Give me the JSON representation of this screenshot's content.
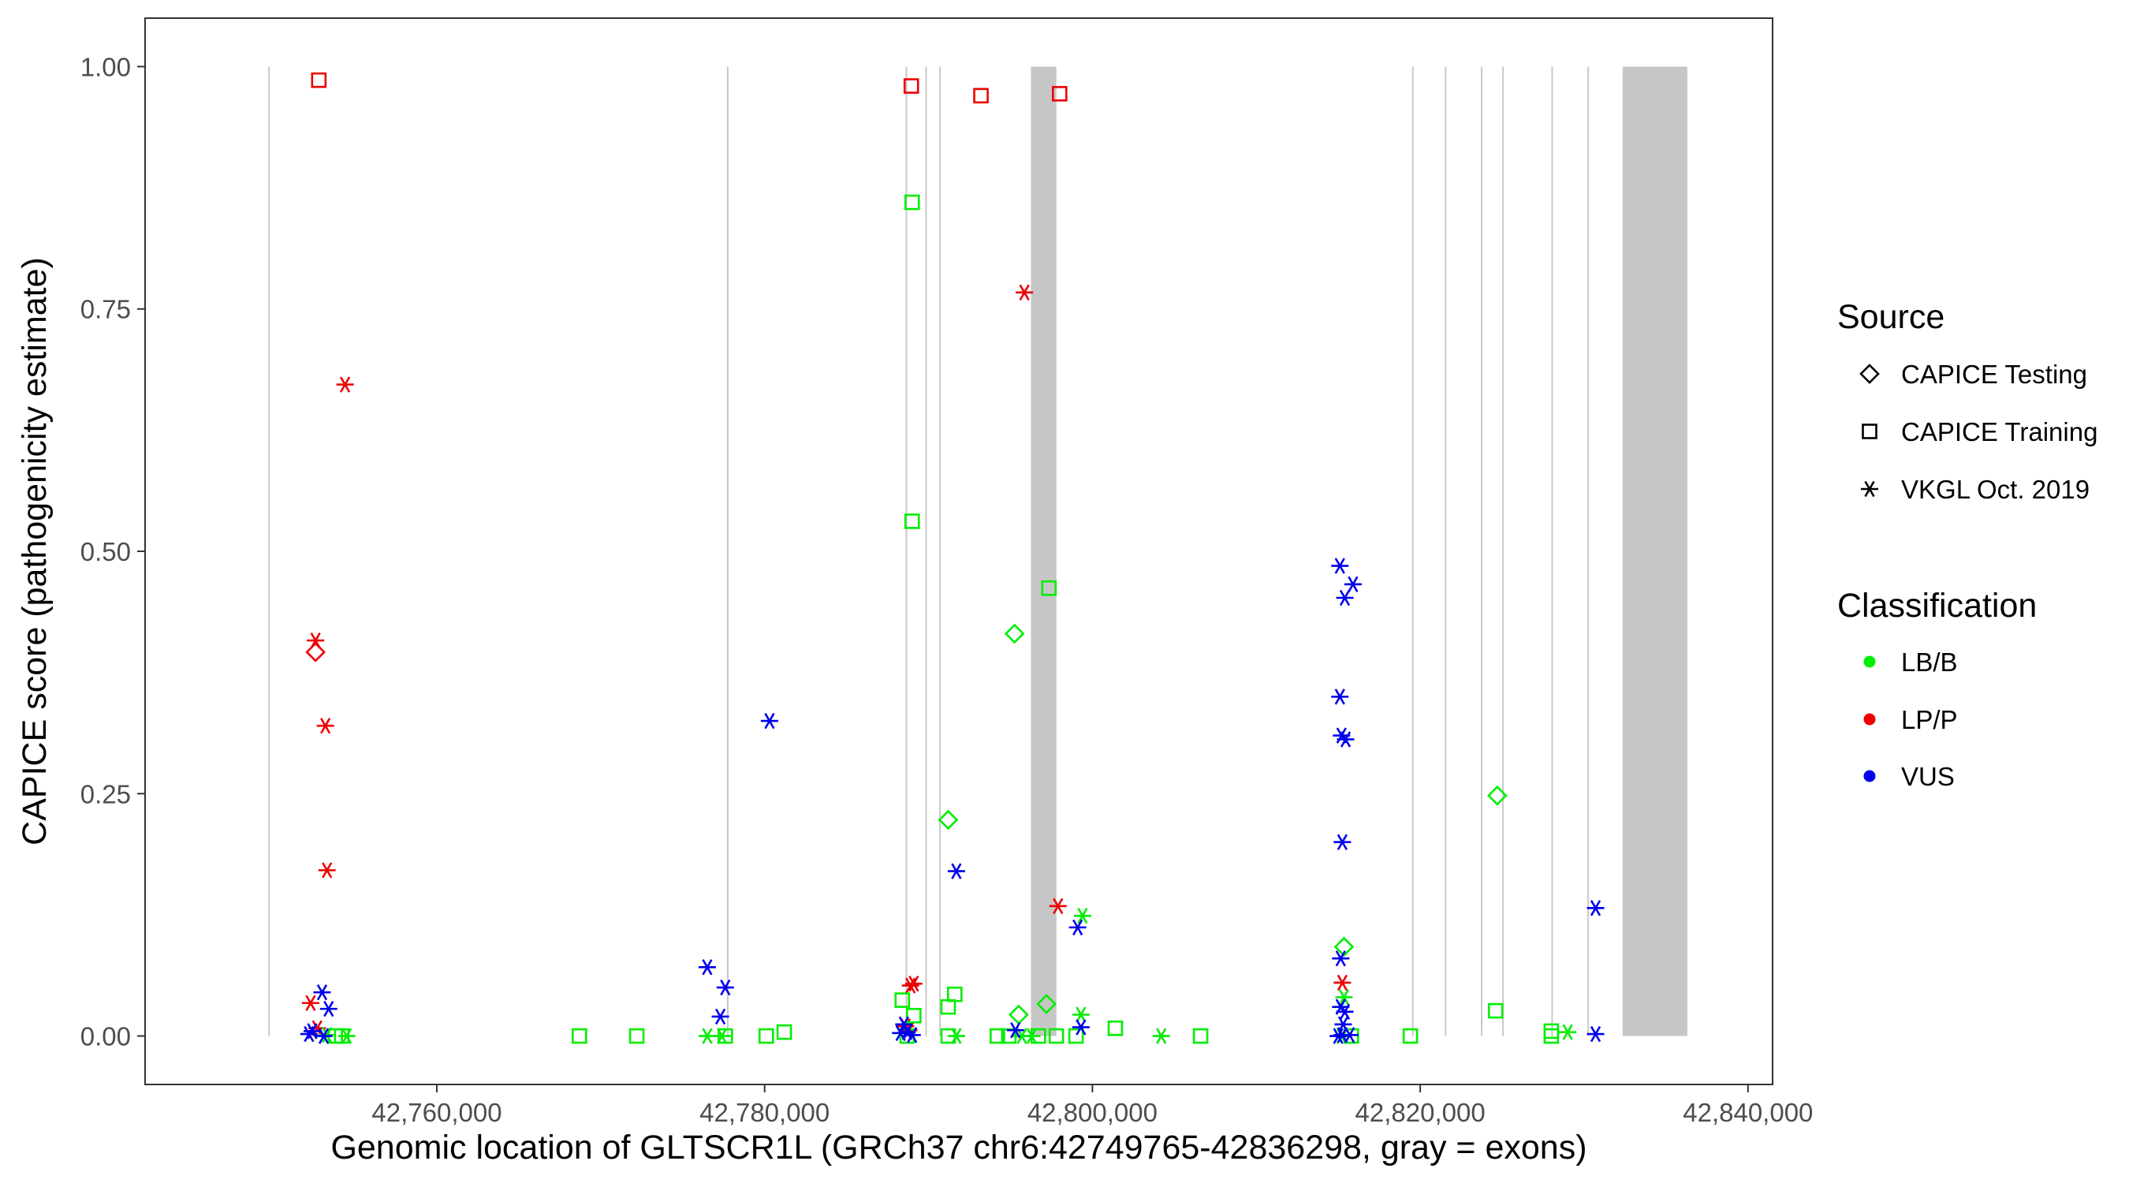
{
  "chart_data": {
    "type": "scatter",
    "title": "",
    "xlabel": "Genomic location of GLTSCR1L (GRCh37 chr6:42749765-42836298, gray = exons)",
    "ylabel": "CAPICE score (pathogenicity estimate)",
    "xlim": [
      42742200,
      42841500
    ],
    "ylim": [
      -0.05,
      1.05
    ],
    "x_ticks": [
      42760000,
      42780000,
      42800000,
      42820000,
      42840000
    ],
    "x_tick_labels": [
      "42,760,000",
      "42,780,000",
      "42,800,000",
      "42,820,000",
      "42,840,000"
    ],
    "y_ticks": [
      0,
      0.25,
      0.5,
      0.75,
      1.0
    ],
    "y_tick_labels": [
      "0.00",
      "0.25",
      "0.50",
      "0.75",
      "1.00"
    ],
    "grid": false,
    "legend_position": "right",
    "legend": {
      "source_title": "Source",
      "source_items": [
        {
          "label": "CAPICE Testing",
          "shape": "diamond"
        },
        {
          "label": "CAPICE Training",
          "shape": "square"
        },
        {
          "label": "VKGL Oct. 2019",
          "shape": "asterisk"
        }
      ],
      "class_title": "Classification",
      "class_items": [
        {
          "label": "LB/B",
          "color": "#00ee00"
        },
        {
          "label": "LP/P",
          "color": "#ee0000"
        },
        {
          "label": "VUS",
          "color": "#0000ee"
        }
      ]
    },
    "colors": {
      "LB/B": "#00ee00",
      "LP/P": "#ee0000",
      "VUS": "#0000ee"
    },
    "exon_lines": [
      42749765,
      42777750,
      42788650,
      42789850,
      42790700,
      42819550,
      42821550,
      42823750,
      42825050,
      42828050,
      42830250
    ],
    "exon_bands": [
      [
        42796250,
        42797800
      ],
      [
        42832350,
        42836298
      ]
    ],
    "points": [
      {
        "x": 42752800,
        "y": 0.986,
        "source": "CAPICE Training",
        "class": "LP/P"
      },
      {
        "x": 42788950,
        "y": 0.98,
        "source": "CAPICE Training",
        "class": "LP/P"
      },
      {
        "x": 42793200,
        "y": 0.97,
        "source": "CAPICE Training",
        "class": "LP/P"
      },
      {
        "x": 42798000,
        "y": 0.972,
        "source": "CAPICE Training",
        "class": "LP/P"
      },
      {
        "x": 42795850,
        "y": 0.767,
        "source": "VKGL Oct. 2019",
        "class": "LP/P"
      },
      {
        "x": 42754400,
        "y": 0.672,
        "source": "VKGL Oct. 2019",
        "class": "LP/P"
      },
      {
        "x": 42752600,
        "y": 0.408,
        "source": "VKGL Oct. 2019",
        "class": "LP/P"
      },
      {
        "x": 42752600,
        "y": 0.396,
        "source": "CAPICE Testing",
        "class": "LP/P"
      },
      {
        "x": 42753200,
        "y": 0.32,
        "source": "VKGL Oct. 2019",
        "class": "LP/P"
      },
      {
        "x": 42753300,
        "y": 0.171,
        "source": "VKGL Oct. 2019",
        "class": "LP/P"
      },
      {
        "x": 42797900,
        "y": 0.134,
        "source": "VKGL Oct. 2019",
        "class": "LP/P"
      },
      {
        "x": 42752300,
        "y": 0.034,
        "source": "VKGL Oct. 2019",
        "class": "LP/P"
      },
      {
        "x": 42752700,
        "y": 0.008,
        "source": "VKGL Oct. 2019",
        "class": "LP/P"
      },
      {
        "x": 42788900,
        "y": 0.052,
        "source": "VKGL Oct. 2019",
        "class": "LP/P"
      },
      {
        "x": 42789100,
        "y": 0.054,
        "source": "VKGL Oct. 2019",
        "class": "LP/P"
      },
      {
        "x": 42788600,
        "y": 0.01,
        "source": "VKGL Oct. 2019",
        "class": "LP/P"
      },
      {
        "x": 42788800,
        "y": 0.006,
        "source": "VKGL Oct. 2019",
        "class": "LP/P"
      },
      {
        "x": 42815250,
        "y": 0.055,
        "source": "VKGL Oct. 2019",
        "class": "LP/P"
      },
      {
        "x": 42789000,
        "y": 0.86,
        "source": "CAPICE Training",
        "class": "LB/B"
      },
      {
        "x": 42789000,
        "y": 0.531,
        "source": "CAPICE Training",
        "class": "LB/B"
      },
      {
        "x": 42797350,
        "y": 0.462,
        "source": "CAPICE Training",
        "class": "LB/B"
      },
      {
        "x": 42795250,
        "y": 0.415,
        "source": "CAPICE Testing",
        "class": "LB/B"
      },
      {
        "x": 42824700,
        "y": 0.248,
        "source": "CAPICE Testing",
        "class": "LB/B"
      },
      {
        "x": 42791200,
        "y": 0.223,
        "source": "CAPICE Testing",
        "class": "LB/B"
      },
      {
        "x": 42799400,
        "y": 0.124,
        "source": "VKGL Oct. 2019",
        "class": "LB/B"
      },
      {
        "x": 42815350,
        "y": 0.092,
        "source": "CAPICE Testing",
        "class": "LB/B"
      },
      {
        "x": 42791600,
        "y": 0.043,
        "source": "CAPICE Training",
        "class": "LB/B"
      },
      {
        "x": 42788400,
        "y": 0.037,
        "source": "CAPICE Training",
        "class": "LB/B"
      },
      {
        "x": 42797200,
        "y": 0.033,
        "source": "CAPICE Testing",
        "class": "LB/B"
      },
      {
        "x": 42791200,
        "y": 0.03,
        "source": "CAPICE Training",
        "class": "LB/B"
      },
      {
        "x": 42824600,
        "y": 0.026,
        "source": "CAPICE Training",
        "class": "LB/B"
      },
      {
        "x": 42799300,
        "y": 0.022,
        "source": "VKGL Oct. 2019",
        "class": "LB/B"
      },
      {
        "x": 42795500,
        "y": 0.022,
        "source": "CAPICE Testing",
        "class": "LB/B"
      },
      {
        "x": 42789100,
        "y": 0.021,
        "source": "CAPICE Training",
        "class": "LB/B"
      },
      {
        "x": 42815350,
        "y": 0.04,
        "source": "VKGL Oct. 2019",
        "class": "LB/B"
      },
      {
        "x": 42801400,
        "y": 0.008,
        "source": "CAPICE Training",
        "class": "LB/B"
      },
      {
        "x": 42781200,
        "y": 0.004,
        "source": "CAPICE Training",
        "class": "LB/B"
      },
      {
        "x": 42828000,
        "y": 0.005,
        "source": "CAPICE Training",
        "class": "LB/B"
      },
      {
        "x": 42829000,
        "y": 0.004,
        "source": "VKGL Oct. 2019",
        "class": "LB/B"
      },
      {
        "x": 42753300,
        "y": 0.001,
        "source": "VKGL Oct. 2019",
        "class": "LB/B"
      },
      {
        "x": 42753800,
        "y": 0.0,
        "source": "CAPICE Training",
        "class": "LB/B"
      },
      {
        "x": 42754200,
        "y": 0.0,
        "source": "CAPICE Training",
        "class": "LB/B"
      },
      {
        "x": 42754500,
        "y": 0.0,
        "source": "VKGL Oct. 2019",
        "class": "LB/B"
      },
      {
        "x": 42768700,
        "y": 0.0,
        "source": "CAPICE Training",
        "class": "LB/B"
      },
      {
        "x": 42772200,
        "y": 0.0,
        "source": "CAPICE Training",
        "class": "LB/B"
      },
      {
        "x": 42776500,
        "y": 0.0,
        "source": "VKGL Oct. 2019",
        "class": "LB/B"
      },
      {
        "x": 42777400,
        "y": 0.0,
        "source": "VKGL Oct. 2019",
        "class": "LB/B"
      },
      {
        "x": 42777600,
        "y": 0.0,
        "source": "CAPICE Training",
        "class": "LB/B"
      },
      {
        "x": 42780100,
        "y": 0.0,
        "source": "CAPICE Training",
        "class": "LB/B"
      },
      {
        "x": 42788700,
        "y": 0.0,
        "source": "CAPICE Training",
        "class": "LB/B"
      },
      {
        "x": 42791200,
        "y": 0.0,
        "source": "CAPICE Training",
        "class": "LB/B"
      },
      {
        "x": 42791700,
        "y": 0.0,
        "source": "VKGL Oct. 2019",
        "class": "LB/B"
      },
      {
        "x": 42794200,
        "y": 0.0,
        "source": "CAPICE Training",
        "class": "LB/B"
      },
      {
        "x": 42794900,
        "y": 0.0,
        "source": "CAPICE Training",
        "class": "LB/B"
      },
      {
        "x": 42795700,
        "y": 0.0,
        "source": "VKGL Oct. 2019",
        "class": "LB/B"
      },
      {
        "x": 42796300,
        "y": 0.0,
        "source": "VKGL Oct. 2019",
        "class": "LB/B"
      },
      {
        "x": 42796700,
        "y": 0.0,
        "source": "CAPICE Training",
        "class": "LB/B"
      },
      {
        "x": 42797800,
        "y": 0.0,
        "source": "CAPICE Training",
        "class": "LB/B"
      },
      {
        "x": 42799000,
        "y": 0.0,
        "source": "CAPICE Training",
        "class": "LB/B"
      },
      {
        "x": 42804200,
        "y": 0.0,
        "source": "VKGL Oct. 2019",
        "class": "LB/B"
      },
      {
        "x": 42806600,
        "y": 0.0,
        "source": "CAPICE Training",
        "class": "LB/B"
      },
      {
        "x": 42815200,
        "y": 0.0,
        "source": "VKGL Oct. 2019",
        "class": "LB/B"
      },
      {
        "x": 42815800,
        "y": 0.0,
        "source": "CAPICE Training",
        "class": "LB/B"
      },
      {
        "x": 42819400,
        "y": 0.0,
        "source": "CAPICE Training",
        "class": "LB/B"
      },
      {
        "x": 42828000,
        "y": 0.0,
        "source": "CAPICE Training",
        "class": "LB/B"
      },
      {
        "x": 42815100,
        "y": 0.485,
        "source": "VKGL Oct. 2019",
        "class": "VUS"
      },
      {
        "x": 42815900,
        "y": 0.466,
        "source": "VKGL Oct. 2019",
        "class": "VUS"
      },
      {
        "x": 42815400,
        "y": 0.452,
        "source": "VKGL Oct. 2019",
        "class": "VUS"
      },
      {
        "x": 42815100,
        "y": 0.35,
        "source": "VKGL Oct. 2019",
        "class": "VUS"
      },
      {
        "x": 42780300,
        "y": 0.325,
        "source": "VKGL Oct. 2019",
        "class": "VUS"
      },
      {
        "x": 42815200,
        "y": 0.31,
        "source": "VKGL Oct. 2019",
        "class": "VUS"
      },
      {
        "x": 42815450,
        "y": 0.306,
        "source": "VKGL Oct. 2019",
        "class": "VUS"
      },
      {
        "x": 42815250,
        "y": 0.2,
        "source": "VKGL Oct. 2019",
        "class": "VUS"
      },
      {
        "x": 42791700,
        "y": 0.17,
        "source": "VKGL Oct. 2019",
        "class": "VUS"
      },
      {
        "x": 42830700,
        "y": 0.132,
        "source": "VKGL Oct. 2019",
        "class": "VUS"
      },
      {
        "x": 42799100,
        "y": 0.112,
        "source": "VKGL Oct. 2019",
        "class": "VUS"
      },
      {
        "x": 42815150,
        "y": 0.08,
        "source": "VKGL Oct. 2019",
        "class": "VUS"
      },
      {
        "x": 42776500,
        "y": 0.071,
        "source": "VKGL Oct. 2019",
        "class": "VUS"
      },
      {
        "x": 42777600,
        "y": 0.05,
        "source": "VKGL Oct. 2019",
        "class": "VUS"
      },
      {
        "x": 42753000,
        "y": 0.045,
        "source": "VKGL Oct. 2019",
        "class": "VUS"
      },
      {
        "x": 42815150,
        "y": 0.03,
        "source": "VKGL Oct. 2019",
        "class": "VUS"
      },
      {
        "x": 42753400,
        "y": 0.028,
        "source": "VKGL Oct. 2019",
        "class": "VUS"
      },
      {
        "x": 42815400,
        "y": 0.025,
        "source": "VKGL Oct. 2019",
        "class": "VUS"
      },
      {
        "x": 42777300,
        "y": 0.02,
        "source": "VKGL Oct. 2019",
        "class": "VUS"
      },
      {
        "x": 42788500,
        "y": 0.012,
        "source": "VKGL Oct. 2019",
        "class": "VUS"
      },
      {
        "x": 42815300,
        "y": 0.012,
        "source": "VKGL Oct. 2019",
        "class": "VUS"
      },
      {
        "x": 42799300,
        "y": 0.009,
        "source": "VKGL Oct. 2019",
        "class": "VUS"
      },
      {
        "x": 42795300,
        "y": 0.006,
        "source": "VKGL Oct. 2019",
        "class": "VUS"
      },
      {
        "x": 42752400,
        "y": 0.005,
        "source": "VKGL Oct. 2019",
        "class": "VUS"
      },
      {
        "x": 42788700,
        "y": 0.004,
        "source": "VKGL Oct. 2019",
        "class": "VUS"
      },
      {
        "x": 42788300,
        "y": 0.003,
        "source": "VKGL Oct. 2019",
        "class": "VUS"
      },
      {
        "x": 42752200,
        "y": 0.002,
        "source": "VKGL Oct. 2019",
        "class": "VUS"
      },
      {
        "x": 42830700,
        "y": 0.002,
        "source": "VKGL Oct. 2019",
        "class": "VUS"
      },
      {
        "x": 42789000,
        "y": 0.001,
        "source": "VKGL Oct. 2019",
        "class": "VUS"
      },
      {
        "x": 42815250,
        "y": 0.001,
        "source": "VKGL Oct. 2019",
        "class": "VUS"
      },
      {
        "x": 42815700,
        "y": 0.001,
        "source": "VKGL Oct. 2019",
        "class": "VUS"
      },
      {
        "x": 42815000,
        "y": 0.0,
        "source": "VKGL Oct. 2019",
        "class": "VUS"
      },
      {
        "x": 42753100,
        "y": 0.0,
        "source": "VKGL Oct. 2019",
        "class": "VUS"
      }
    ]
  }
}
